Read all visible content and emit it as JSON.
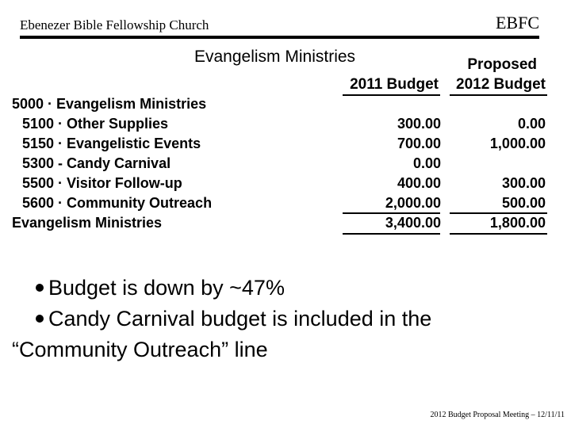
{
  "header": {
    "org_name": "Ebenezer Bible Fellowship Church",
    "abbrev": "EBFC"
  },
  "slide": {
    "title": "Evangelism Ministries"
  },
  "table": {
    "column_headers": {
      "proposed": "Proposed",
      "budget_2011": "2011 Budget",
      "budget_2012": "2012 Budget"
    },
    "rows": [
      {
        "label": "5000 · Evangelism Ministries",
        "v2011": "",
        "v2012": ""
      },
      {
        "label": "5100 · Other Supplies",
        "v2011": "300.00",
        "v2012": "0.00"
      },
      {
        "label": "5150 · Evangelistic Events",
        "v2011": "700.00",
        "v2012": "1,000.00"
      },
      {
        "label": "5300 - Candy Carnival",
        "v2011": "0.00",
        "v2012": ""
      },
      {
        "label": "5500 · Visitor Follow-up",
        "v2011": "400.00",
        "v2012": "300.00"
      },
      {
        "label": "5600 · Community Outreach",
        "v2011": "2,000.00",
        "v2012": "500.00"
      },
      {
        "label": "Evangelism Ministries",
        "v2011": "3,400.00",
        "v2012": "1,800.00"
      }
    ]
  },
  "bullets": [
    "Budget is down by ~47%",
    "Candy Carnival budget is included in the “Community Outreach” line"
  ],
  "footer": {
    "text": "2012 Budget Proposal Meeting – 12/11/11"
  }
}
